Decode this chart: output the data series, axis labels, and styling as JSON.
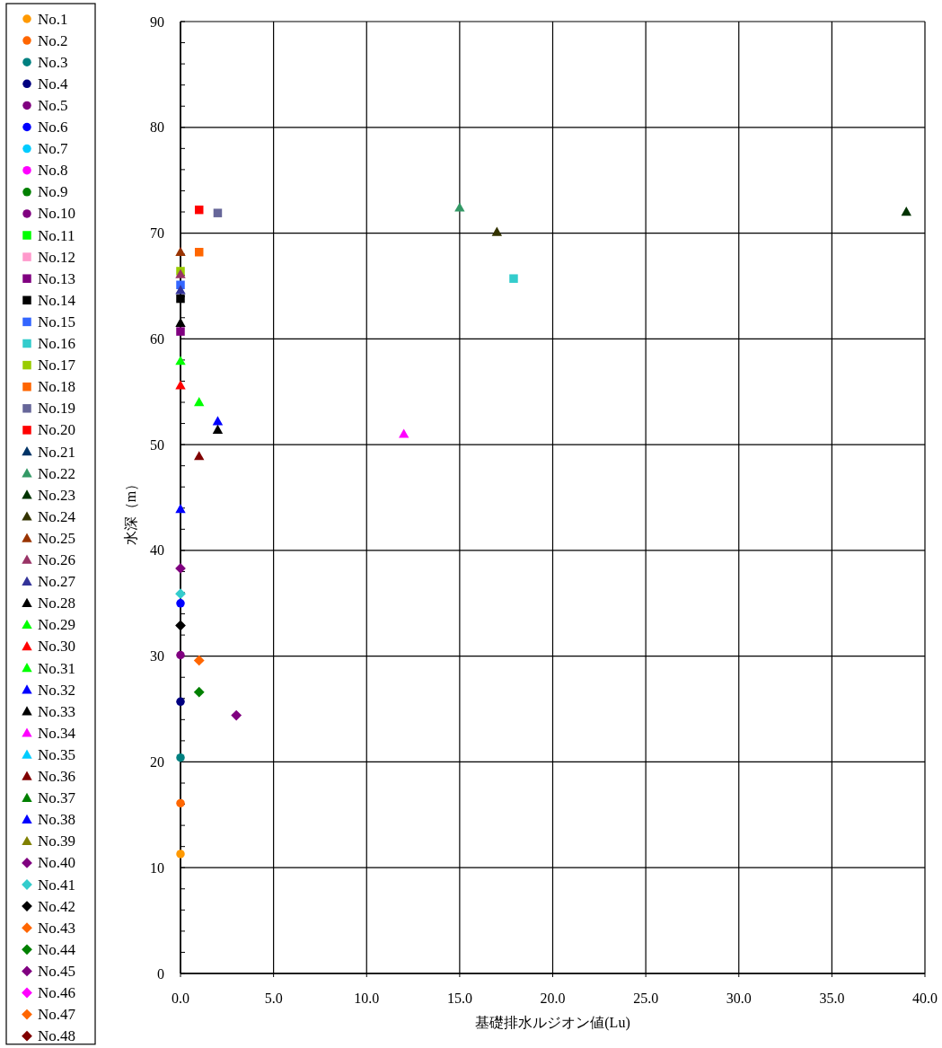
{
  "chart_data": {
    "type": "scatter",
    "xlabel": "基礎排水ルジオン値(Lu)",
    "ylabel": "水深（m）",
    "xlim": [
      0,
      40
    ],
    "xticks": [
      {
        "value": 0,
        "label": "0.0"
      },
      {
        "value": 5,
        "label": "5.0"
      },
      {
        "value": 10,
        "label": "10.0"
      },
      {
        "value": 15,
        "label": "15.0"
      },
      {
        "value": 20,
        "label": "20.0"
      },
      {
        "value": 25,
        "label": "25.0"
      },
      {
        "value": 30,
        "label": "30.0"
      },
      {
        "value": 35,
        "label": "35.0"
      },
      {
        "value": 40,
        "label": "40.0"
      }
    ],
    "ylim": [
      0,
      90
    ],
    "yticks": [
      0,
      {
        "value": 2,
        "label": null
      },
      {
        "value": 4,
        "label": null
      },
      {
        "value": 6,
        "label": null
      },
      {
        "value": 8,
        "label": null
      },
      10,
      {
        "value": 12,
        "label": null
      },
      {
        "value": 14,
        "label": null
      },
      {
        "value": 16,
        "label": null
      },
      {
        "value": 18,
        "label": null
      },
      20,
      {
        "value": 22,
        "label": null
      },
      {
        "value": 24,
        "label": null
      },
      {
        "value": 26,
        "label": null
      },
      {
        "value": 28,
        "label": null
      },
      30,
      {
        "value": 32,
        "label": null
      },
      {
        "value": 34,
        "label": null
      },
      {
        "value": 36,
        "label": null
      },
      {
        "value": 38,
        "label": null
      },
      40,
      {
        "value": 42,
        "label": null
      },
      {
        "value": 44,
        "label": null
      },
      {
        "value": 46,
        "label": null
      },
      {
        "value": 48,
        "label": null
      },
      50,
      {
        "value": 52,
        "label": null
      },
      {
        "value": 54,
        "label": null
      },
      {
        "value": 56,
        "label": null
      },
      {
        "value": 58,
        "label": null
      },
      60,
      {
        "value": 62,
        "label": null
      },
      {
        "value": 64,
        "label": null
      },
      {
        "value": 66,
        "label": null
      },
      {
        "value": 68,
        "label": null
      },
      70,
      {
        "value": 72,
        "label": null
      },
      {
        "value": 74,
        "label": null
      },
      {
        "value": 76,
        "label": null
      },
      {
        "value": 78,
        "label": null
      },
      80,
      {
        "value": 82,
        "label": null
      },
      {
        "value": 84,
        "label": null
      },
      {
        "value": 86,
        "label": null
      },
      {
        "value": 88,
        "label": null
      },
      90
    ],
    "grid": true,
    "legend": "left",
    "series": [
      {
        "name": "No.1",
        "color": "#ff9900",
        "marker": "circle",
        "x": [
          0
        ],
        "values": [
          11.3
        ]
      },
      {
        "name": "No.2",
        "color": "#ff6600",
        "marker": "circle",
        "x": [
          0
        ],
        "values": [
          16.1
        ]
      },
      {
        "name": "No.3",
        "color": "#008080",
        "marker": "circle",
        "x": [
          0
        ],
        "values": [
          20.4
        ]
      },
      {
        "name": "No.4",
        "color": "#000080",
        "marker": "circle",
        "x": [
          0
        ],
        "values": [
          25.7
        ]
      },
      {
        "name": "No.5",
        "color": "#800080",
        "marker": "circle",
        "x": [
          0
        ],
        "values": [
          30.1
        ]
      },
      {
        "name": "No.6",
        "color": "#0000ff",
        "marker": "circle",
        "x": [
          0
        ],
        "values": [
          35.0
        ]
      },
      {
        "name": "No.7",
        "color": "#00ccff",
        "marker": "circle"
      },
      {
        "name": "No.8",
        "color": "#ff00ff",
        "marker": "circle"
      },
      {
        "name": "No.9",
        "color": "#008000",
        "marker": "circle"
      },
      {
        "name": "No.10",
        "color": "#800080",
        "marker": "circle"
      },
      {
        "name": "No.11",
        "color": "#00ff00",
        "marker": "square"
      },
      {
        "name": "No.12",
        "color": "#ff99cc",
        "marker": "square"
      },
      {
        "name": "No.13",
        "color": "#800080",
        "marker": "square",
        "x": [
          0
        ],
        "values": [
          60.7
        ]
      },
      {
        "name": "No.14",
        "color": "#000000",
        "marker": "square",
        "x": [
          0
        ],
        "values": [
          63.8
        ]
      },
      {
        "name": "No.15",
        "color": "#3366ff",
        "marker": "square",
        "x": [
          0
        ],
        "values": [
          65.1
        ]
      },
      {
        "name": "No.16",
        "color": "#33cccc",
        "marker": "square",
        "x": [
          17.9
        ],
        "values": [
          65.7
        ]
      },
      {
        "name": "No.17",
        "color": "#99cc00",
        "marker": "square",
        "x": [
          0
        ],
        "values": [
          66.4
        ]
      },
      {
        "name": "No.18",
        "color": "#ff6600",
        "marker": "square",
        "x": [
          1.0
        ],
        "values": [
          68.2
        ]
      },
      {
        "name": "No.19",
        "color": "#666699",
        "marker": "square",
        "x": [
          2.0
        ],
        "values": [
          71.9
        ]
      },
      {
        "name": "No.20",
        "color": "#ff0000",
        "marker": "square",
        "x": [
          1.0
        ],
        "values": [
          72.2
        ]
      },
      {
        "name": "No.21",
        "color": "#003366",
        "marker": "triangle"
      },
      {
        "name": "No.22",
        "color": "#339966",
        "marker": "triangle",
        "x": [
          15.0
        ],
        "values": [
          72.4
        ]
      },
      {
        "name": "No.23",
        "color": "#003300",
        "marker": "triangle",
        "x": [
          39.0
        ],
        "values": [
          72.0
        ]
      },
      {
        "name": "No.24",
        "color": "#333300",
        "marker": "triangle",
        "x": [
          17.0
        ],
        "values": [
          70.1
        ]
      },
      {
        "name": "No.25",
        "color": "#993300",
        "marker": "triangle",
        "x": [
          0
        ],
        "values": [
          68.2
        ]
      },
      {
        "name": "No.26",
        "color": "#993366",
        "marker": "triangle",
        "x": [
          0
        ],
        "values": [
          66.1
        ]
      },
      {
        "name": "No.27",
        "color": "#333399",
        "marker": "triangle",
        "x": [
          0
        ],
        "values": [
          64.6
        ]
      },
      {
        "name": "No.28",
        "color": "#000000",
        "marker": "triangle",
        "x": [
          0
        ],
        "values": [
          61.5
        ]
      },
      {
        "name": "No.29",
        "color": "#00ff00",
        "marker": "triangle",
        "x": [
          0
        ],
        "values": [
          57.9
        ]
      },
      {
        "name": "No.30",
        "color": "#ff0000",
        "marker": "triangle",
        "x": [
          0
        ],
        "values": [
          55.6
        ]
      },
      {
        "name": "No.31",
        "color": "#00ff00",
        "marker": "triangle",
        "x": [
          1.0
        ],
        "values": [
          54.0
        ]
      },
      {
        "name": "No.32",
        "color": "#0000ff",
        "marker": "triangle",
        "x": [
          2.0
        ],
        "values": [
          52.2
        ]
      },
      {
        "name": "No.33",
        "color": "#000000",
        "marker": "triangle",
        "x": [
          2.0
        ],
        "values": [
          51.4
        ]
      },
      {
        "name": "No.34",
        "color": "#ff00ff",
        "marker": "triangle",
        "x": [
          12.0
        ],
        "values": [
          51.0
        ]
      },
      {
        "name": "No.35",
        "color": "#00ccff",
        "marker": "triangle"
      },
      {
        "name": "No.36",
        "color": "#800000",
        "marker": "triangle",
        "x": [
          1.0
        ],
        "values": [
          48.9
        ]
      },
      {
        "name": "No.37",
        "color": "#008000",
        "marker": "triangle"
      },
      {
        "name": "No.38",
        "color": "#0000ff",
        "marker": "triangle",
        "x": [
          0
        ],
        "values": [
          43.9
        ]
      },
      {
        "name": "No.39",
        "color": "#808000",
        "marker": "triangle"
      },
      {
        "name": "No.40",
        "color": "#800080",
        "marker": "diamond",
        "x": [
          0
        ],
        "values": [
          38.3
        ]
      },
      {
        "name": "No.41",
        "color": "#33cccc",
        "marker": "diamond",
        "x": [
          0
        ],
        "values": [
          35.9
        ]
      },
      {
        "name": "No.42",
        "color": "#000000",
        "marker": "diamond",
        "x": [
          0
        ],
        "values": [
          32.9
        ]
      },
      {
        "name": "No.43",
        "color": "#ff6600",
        "marker": "diamond",
        "x": [
          1.0
        ],
        "values": [
          29.6
        ]
      },
      {
        "name": "No.44",
        "color": "#008000",
        "marker": "diamond",
        "x": [
          1.0
        ],
        "values": [
          26.6
        ]
      },
      {
        "name": "No.45",
        "color": "#800080",
        "marker": "diamond",
        "x": [
          3.0
        ],
        "values": [
          24.4
        ]
      },
      {
        "name": "No.46",
        "color": "#ff00ff",
        "marker": "diamond"
      },
      {
        "name": "No.47",
        "color": "#ff6600",
        "marker": "diamond"
      },
      {
        "name": "No.48",
        "color": "#800000",
        "marker": "diamond"
      }
    ]
  }
}
